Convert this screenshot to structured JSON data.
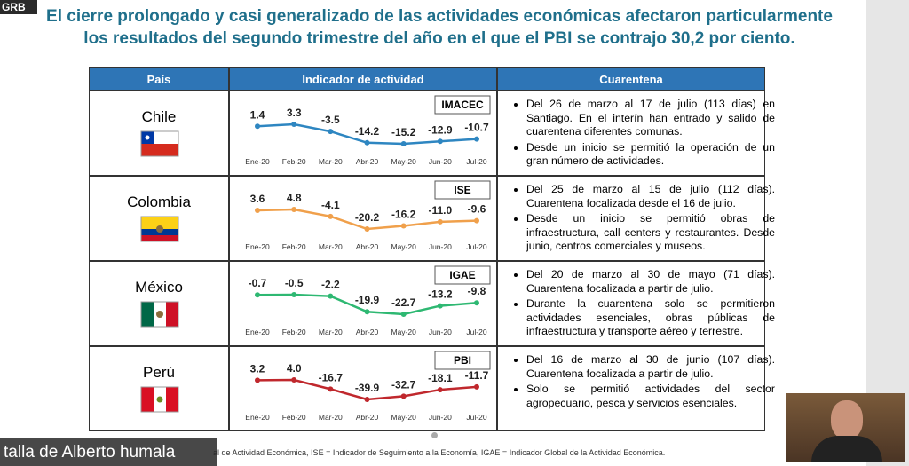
{
  "overlay": {
    "tag": "GRB",
    "speaker": "talla de Alberto humala"
  },
  "slide": {
    "title": [
      "El cierre prolongado y casi generalizado de las actividades económicas afectaron particularmente",
      "los resultados del segundo trimestre del año en el que el PBI se contrajo 30,2 por ciento."
    ],
    "table": {
      "headers": [
        "País",
        "Indicador de actividad",
        "Cuarentena"
      ],
      "months": [
        "Ene-20",
        "Feb-20",
        "Mar-20",
        "Abr-20",
        "May-20",
        "Jun-20",
        "Jul-20"
      ],
      "rows": [
        {
          "country": "Chile",
          "indicator": "IMACEC",
          "color": "#2e86c1",
          "values": [
            1.4,
            3.3,
            -3.5,
            -14.2,
            -15.2,
            -12.9,
            -10.7
          ],
          "value_labels": [
            "1.4",
            "3.3",
            "-3.5",
            "-14.2",
            "-15.2",
            "-12.9",
            "-10.7"
          ],
          "quarantine": [
            "Del 26 de marzo al 17 de julio (113 días) en Santiago. En el interín han entrado y salido de cuarentena diferentes comunas.",
            "Desde un inicio se permitió la operación de un gran número de actividades."
          ]
        },
        {
          "country": "Colombia",
          "indicator": "ISE",
          "color": "#f0a04b",
          "values": [
            3.6,
            4.8,
            -4.1,
            -20.2,
            -16.2,
            -11.0,
            -9.6
          ],
          "value_labels": [
            "3.6",
            "4.8",
            "-4.1",
            "-20.2",
            "-16.2",
            "-11.0",
            "-9.6"
          ],
          "quarantine": [
            "Del 25 de marzo al 15 de julio (112 días). Cuarentena focalizada desde el 16 de julio.",
            "Desde un inicio se permitió obras de infraestructura, call centers y restaurantes. Desde junio, centros comerciales y museos."
          ]
        },
        {
          "country": "México",
          "indicator": "IGAE",
          "color": "#2eb872",
          "values": [
            -0.7,
            -0.5,
            -2.2,
            -19.9,
            -22.7,
            -13.2,
            -9.8
          ],
          "value_labels": [
            "-0.7",
            "-0.5",
            "-2.2",
            "-19.9",
            "-22.7",
            "-13.2",
            "-9.8"
          ],
          "quarantine": [
            "Del 20 de marzo al 30 de mayo (71 días). Cuarentena focalizada a partir de julio.",
            "Durante la cuarentena solo se permitieron actividades esenciales, obras públicas de infraestructura y transporte aéreo y terrestre."
          ]
        },
        {
          "country": "Perú",
          "indicator": "PBI",
          "color": "#c0282d",
          "values": [
            3.2,
            4.0,
            -16.7,
            -39.9,
            -32.7,
            -18.1,
            -11.7
          ],
          "value_labels": [
            "3.2",
            "4.0",
            "-16.7",
            "-39.9",
            "-32.7",
            "-18.1",
            "-11.7"
          ],
          "quarantine": [
            "Del 16 de marzo al 30 de junio (107 días). Cuarentena focalizada a partir de julio.",
            "Solo se permitió actividades del sector agropecuario, pesca y servicios esenciales."
          ]
        }
      ]
    },
    "footnote": "al de Actividad Económica, ISE = Indicador de Seguimiento a la Economía, IGAE = Indicador Global de la Actividad Económica."
  }
}
